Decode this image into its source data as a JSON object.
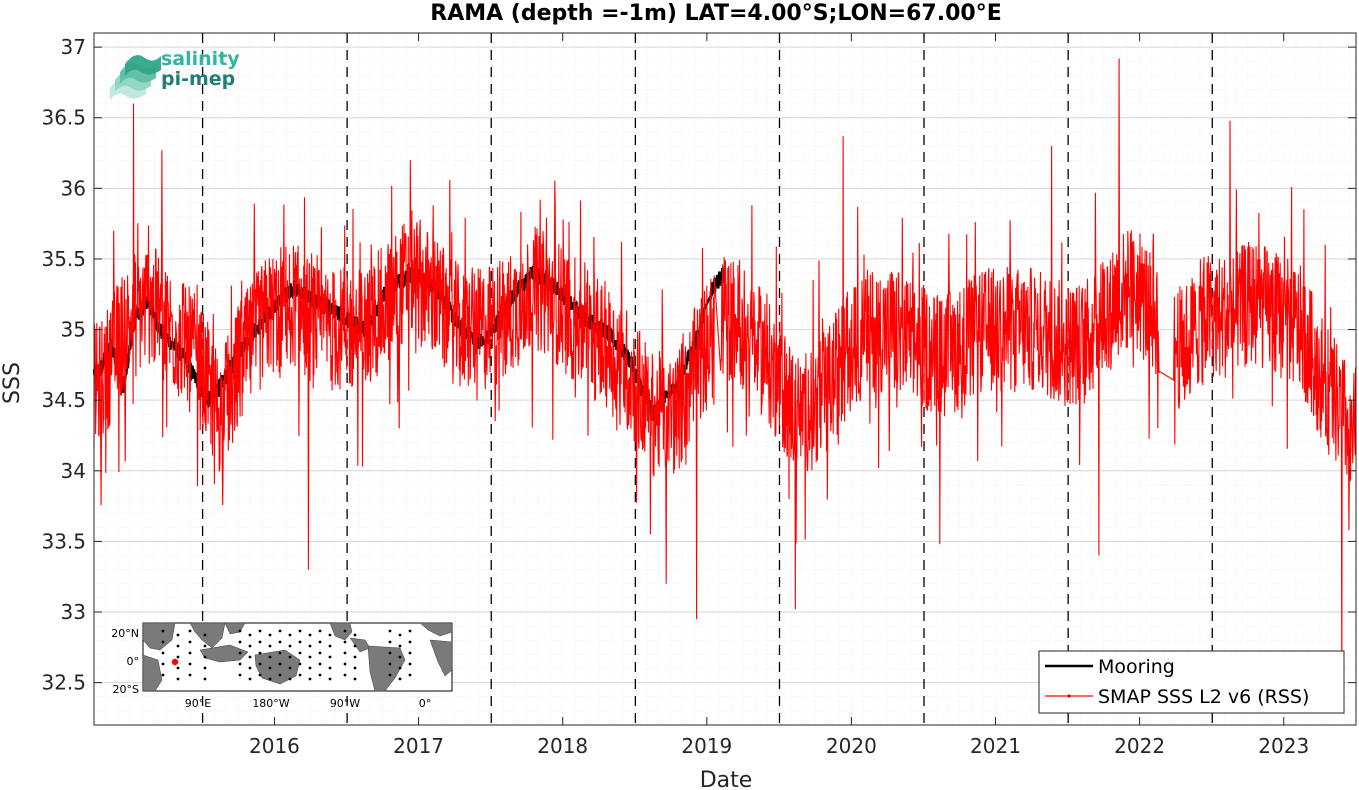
{
  "chart_data": {
    "type": "line",
    "title": "RAMA (depth =-1m) LAT=4.00°S;LON=67.00°E",
    "xlabel": "Date",
    "ylabel": "SSS",
    "xlim": [
      "2015-04-01",
      "2023-12-31"
    ],
    "ylim": [
      32.2,
      37.1
    ],
    "x_ticks": [
      "2016",
      "2017",
      "2018",
      "2019",
      "2020",
      "2021",
      "2022",
      "2023"
    ],
    "y_ticks": [
      "32.5",
      "33",
      "33.5",
      "34",
      "34.5",
      "35",
      "35.5",
      "36",
      "36.5",
      "37"
    ],
    "grid": true,
    "minor_grid": true,
    "year_boundaries": [
      "2016-01-01",
      "2017-01-01",
      "2018-01-01",
      "2019-01-01",
      "2020-01-01",
      "2021-01-01",
      "2022-01-01",
      "2023-01-01"
    ],
    "legend_position": "bottom-right",
    "series": [
      {
        "name": "Mooring",
        "color": "#000000",
        "values_at_month": [
          [
            "2015-04",
            34.7
          ],
          [
            "2015-05",
            34.9
          ],
          [
            "2015-06",
            34.6
          ],
          [
            "2015-07",
            35.1
          ],
          [
            "2015-08",
            35.2
          ],
          [
            "2015-09",
            35.0
          ],
          [
            "2015-10",
            34.9
          ],
          [
            "2015-11",
            34.8
          ],
          [
            "2016-01",
            34.5
          ],
          [
            "2016-02",
            34.6
          ],
          [
            "2016-04",
            34.9
          ],
          [
            "2016-06",
            35.1
          ],
          [
            "2016-08",
            35.3
          ],
          [
            "2016-10",
            35.2
          ],
          [
            "2016-12",
            35.1
          ],
          [
            "2017-02",
            35.0
          ],
          [
            "2017-04",
            35.3
          ],
          [
            "2017-06",
            35.4
          ],
          [
            "2017-08",
            35.3
          ],
          [
            "2017-10",
            35.0
          ],
          [
            "2017-12",
            34.9
          ],
          [
            "2018-02",
            35.2
          ],
          [
            "2018-04",
            35.4
          ],
          [
            "2018-06",
            35.3
          ],
          [
            "2018-08",
            35.1
          ],
          [
            "2018-10",
            35.0
          ],
          [
            "2018-12",
            34.8
          ],
          [
            "2019-02",
            34.4
          ],
          [
            "2019-04",
            34.6
          ],
          [
            "2019-06",
            35.0
          ],
          [
            "2019-07",
            35.3
          ],
          [
            "2019-08",
            35.4
          ]
        ]
      },
      {
        "name": "SMAP SSS L2 v6 (RSS)",
        "color": "#ff0000",
        "monthly_mean": [
          [
            "2015-04",
            34.6
          ],
          [
            "2015-06",
            35.0
          ],
          [
            "2015-08",
            35.2
          ],
          [
            "2015-10",
            35.0
          ],
          [
            "2015-12",
            34.8
          ],
          [
            "2016-02",
            34.4
          ],
          [
            "2016-04",
            34.8
          ],
          [
            "2016-06",
            35.1
          ],
          [
            "2016-08",
            35.2
          ],
          [
            "2016-10",
            35.0
          ],
          [
            "2016-12",
            35.0
          ],
          [
            "2017-02",
            35.0
          ],
          [
            "2017-04",
            35.2
          ],
          [
            "2017-06",
            35.4
          ],
          [
            "2017-08",
            35.2
          ],
          [
            "2017-10",
            35.0
          ],
          [
            "2017-12",
            35.0
          ],
          [
            "2018-02",
            35.1
          ],
          [
            "2018-04",
            35.3
          ],
          [
            "2018-06",
            35.2
          ],
          [
            "2018-08",
            35.0
          ],
          [
            "2018-10",
            34.9
          ],
          [
            "2018-12",
            34.7
          ],
          [
            "2019-02",
            34.4
          ],
          [
            "2019-04",
            34.4
          ],
          [
            "2019-06",
            34.8
          ],
          [
            "2019-08",
            35.1
          ],
          [
            "2019-10",
            35.0
          ],
          [
            "2019-12",
            34.7
          ],
          [
            "2020-02",
            34.4
          ],
          [
            "2020-04",
            34.5
          ],
          [
            "2020-06",
            34.8
          ],
          [
            "2020-08",
            35.0
          ],
          [
            "2020-10",
            35.0
          ],
          [
            "2020-12",
            34.9
          ],
          [
            "2021-02",
            34.8
          ],
          [
            "2021-04",
            34.9
          ],
          [
            "2021-06",
            35.0
          ],
          [
            "2021-08",
            35.0
          ],
          [
            "2021-10",
            35.0
          ],
          [
            "2021-12",
            34.9
          ],
          [
            "2022-02",
            34.9
          ],
          [
            "2022-04",
            35.2
          ],
          [
            "2022-06",
            35.3
          ],
          [
            "2022-08",
            35.1
          ],
          [
            "2022-10",
            34.85
          ],
          [
            "2022-12",
            35.1
          ],
          [
            "2023-02",
            35.1
          ],
          [
            "2023-04",
            35.2
          ],
          [
            "2023-06",
            35.1
          ],
          [
            "2023-08",
            35.0
          ],
          [
            "2023-10",
            34.6
          ],
          [
            "2023-12",
            34.3
          ]
        ],
        "extremes": [
          [
            "2015-07-10",
            36.6
          ],
          [
            "2015-09-20",
            36.27
          ],
          [
            "2016-09-25",
            33.3
          ],
          [
            "2017-06-10",
            36.2
          ],
          [
            "2019-03-20",
            33.2
          ],
          [
            "2019-06-05",
            32.95
          ],
          [
            "2020-01-25",
            33.8
          ],
          [
            "2020-02-10",
            33.02
          ],
          [
            "2020-06-10",
            36.37
          ],
          [
            "2021-02-10",
            33.48
          ],
          [
            "2021-11-20",
            36.3
          ],
          [
            "2022-03-20",
            33.4
          ],
          [
            "2022-05-10",
            36.92
          ],
          [
            "2023-02-15",
            36.48
          ],
          [
            "2023-11-25",
            32.4
          ]
        ]
      }
    ]
  },
  "inset_map": {
    "lat_labels": [
      "20°N",
      "0°",
      "20°S"
    ],
    "lon_labels": [
      "90°E",
      "180°W",
      "90°W",
      "0°"
    ],
    "marker_color": "#ff0000"
  },
  "logo": {
    "line1": "salinity",
    "line2": "pi-mep"
  },
  "legend": {
    "mooring_label": "Mooring",
    "smap_label": "SMAP SSS L2 v6 (RSS)"
  }
}
